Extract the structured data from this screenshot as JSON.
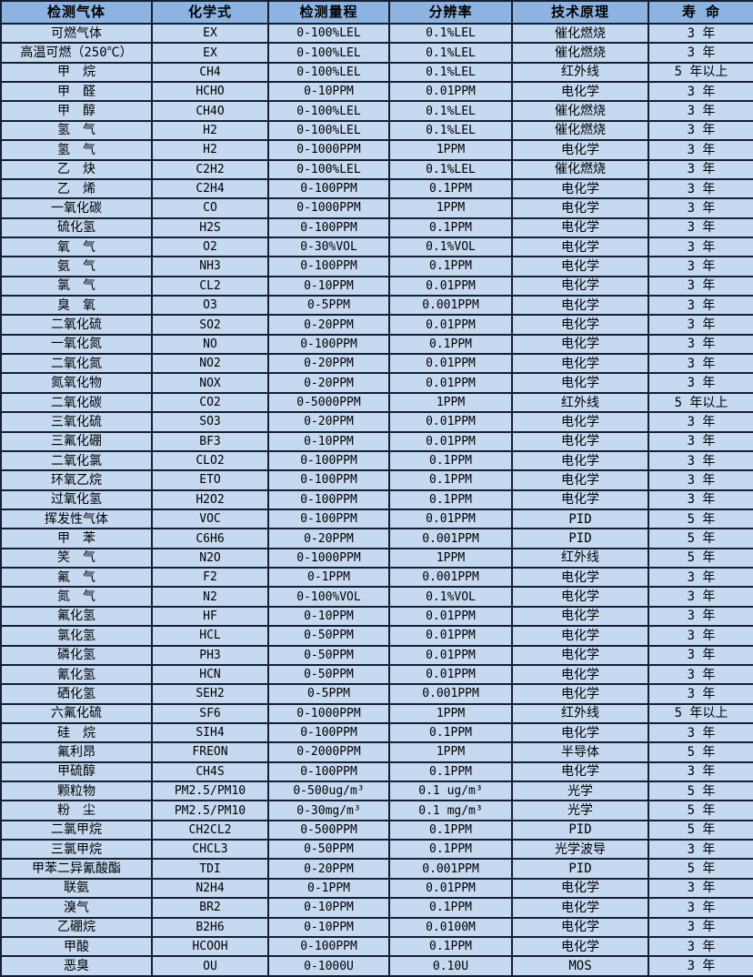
{
  "table": {
    "columns": [
      "检测气体",
      "化学式",
      "检测量程",
      "分辨率",
      "技术原理",
      "寿 命"
    ],
    "rows": [
      [
        "可燃气体",
        "EX",
        "0-100%LEL",
        "0.1%LEL",
        "催化燃烧",
        "3 年"
      ],
      [
        "高温可燃（250℃）",
        "EX",
        "0-100%LEL",
        "0.1%LEL",
        "催化燃烧",
        "3 年"
      ],
      [
        "甲　烷",
        "CH4",
        "0-100%LEL",
        "0.1%LEL",
        "红外线",
        "5 年以上"
      ],
      [
        "甲　醛",
        "HCHO",
        "0-10PPM",
        "0.01PPM",
        "电化学",
        "3 年"
      ],
      [
        "甲　醇",
        "CH4O",
        "0-100%LEL",
        "0.1%LEL",
        "催化燃烧",
        "3 年"
      ],
      [
        "氢　气",
        "H2",
        "0-100%LEL",
        "0.1%LEL",
        "催化燃烧",
        "3 年"
      ],
      [
        "氢　气",
        "H2",
        "0-1000PPM",
        "1PPM",
        "电化学",
        "3 年"
      ],
      [
        "乙　炔",
        "C2H2",
        "0-100%LEL",
        "0.1%LEL",
        "催化燃烧",
        "3 年"
      ],
      [
        "乙　烯",
        "C2H4",
        "0-100PPM",
        "0.1PPM",
        "电化学",
        "3 年"
      ],
      [
        "一氧化碳",
        "CO",
        "0-1000PPM",
        "1PPM",
        "电化学",
        "3 年"
      ],
      [
        "硫化氢",
        "H2S",
        "0-100PPM",
        "0.1PPM",
        "电化学",
        "3 年"
      ],
      [
        "氧　气",
        "O2",
        "0-30%VOL",
        "0.1%VOL",
        "电化学",
        "3 年"
      ],
      [
        "氨　气",
        "NH3",
        "0-100PPM",
        "0.1PPM",
        "电化学",
        "3 年"
      ],
      [
        "氯　气",
        "CL2",
        "0-10PPM",
        "0.01PPM",
        "电化学",
        "3 年"
      ],
      [
        "臭　氧",
        "O3",
        "0-5PPM",
        "0.001PPM",
        "电化学",
        "3 年"
      ],
      [
        "二氧化硫",
        "SO2",
        "0-20PPM",
        "0.01PPM",
        "电化学",
        "3 年"
      ],
      [
        "一氧化氮",
        "NO",
        "0-100PPM",
        "0.1PPM",
        "电化学",
        "3 年"
      ],
      [
        "二氧化氮",
        "NO2",
        "0-20PPM",
        "0.01PPM",
        "电化学",
        "3 年"
      ],
      [
        "氮氧化物",
        "NOX",
        "0-20PPM",
        "0.01PPM",
        "电化学",
        "3 年"
      ],
      [
        "二氧化碳",
        "CO2",
        "0-5000PPM",
        "1PPM",
        "红外线",
        "5 年以上"
      ],
      [
        "三氧化硫",
        "SO3",
        "0-20PPM",
        "0.01PPM",
        "电化学",
        "3 年"
      ],
      [
        "三氟化硼",
        "BF3",
        "0-10PPM",
        "0.01PPM",
        "电化学",
        "3 年"
      ],
      [
        "二氧化氯",
        "CLO2",
        "0-100PPM",
        "0.1PPM",
        "电化学",
        "3 年"
      ],
      [
        "环氧乙烷",
        "ETO",
        "0-100PPM",
        "0.1PPM",
        "电化学",
        "3 年"
      ],
      [
        "过氧化氢",
        "H2O2",
        "0-100PPM",
        "0.1PPM",
        "电化学",
        "3 年"
      ],
      [
        "挥发性气体",
        "VOC",
        "0-100PPM",
        "0.01PPM",
        "PID",
        "5 年"
      ],
      [
        "甲　苯",
        "C6H6",
        "0-20PPM",
        "0.001PPM",
        "PID",
        "5 年"
      ],
      [
        "笑　气",
        "N2O",
        "0-1000PPM",
        "1PPM",
        "红外线",
        "5 年"
      ],
      [
        "氟　气",
        "F2",
        "0-1PPM",
        "0.001PPM",
        "电化学",
        "3 年"
      ],
      [
        "氮　气",
        "N2",
        "0-100%VOL",
        "0.1%VOL",
        "电化学",
        "3 年"
      ],
      [
        "氟化氢",
        "HF",
        "0-10PPM",
        "0.01PPM",
        "电化学",
        "3 年"
      ],
      [
        "氯化氢",
        "HCL",
        "0-50PPM",
        "0.01PPM",
        "电化学",
        "3 年"
      ],
      [
        "磷化氢",
        "PH3",
        "0-50PPM",
        "0.01PPM",
        "电化学",
        "3 年"
      ],
      [
        "氰化氢",
        "HCN",
        "0-50PPM",
        "0.01PPM",
        "电化学",
        "3 年"
      ],
      [
        "硒化氢",
        "SEH2",
        "0-5PPM",
        "0.001PPM",
        "电化学",
        "3 年"
      ],
      [
        "六氟化硫",
        "SF6",
        "0-1000PPM",
        "1PPM",
        "红外线",
        "5 年以上"
      ],
      [
        "硅　烷",
        "SIH4",
        "0-100PPM",
        "0.1PPM",
        "电化学",
        "3 年"
      ],
      [
        "氟利昂",
        "FREON",
        "0-2000PPM",
        "1PPM",
        "半导体",
        "5 年"
      ],
      [
        "甲硫醇",
        "CH4S",
        "0-100PPM",
        "0.1PPM",
        "电化学",
        "3 年"
      ],
      [
        "颗粒物",
        "PM2.5/PM10",
        "0-500ug/m³",
        "0.1 ug/m³",
        "光学",
        "5 年"
      ],
      [
        "粉　尘",
        "PM2.5/PM10",
        "0-30mg/m³",
        "0.1 mg/m³",
        "光学",
        "5 年"
      ],
      [
        "二氯甲烷",
        "CH2CL2",
        "0-500PPM",
        "0.1PPM",
        "PID",
        "5 年"
      ],
      [
        "三氯甲烷",
        "CHCL3",
        "0-50PPM",
        "0.1PPM",
        "光学波导",
        "3 年"
      ],
      [
        "甲苯二异氰酸酯",
        "TDI",
        "0-20PPM",
        "0.001PPM",
        "PID",
        "5 年"
      ],
      [
        "联氨",
        "N2H4",
        "0-1PPM",
        "0.01PPM",
        "电化学",
        "3 年"
      ],
      [
        "溴气",
        "BR2",
        "0-10PPM",
        "0.1PPM",
        "电化学",
        "3 年"
      ],
      [
        "乙硼烷",
        "B2H6",
        "0-10PPM",
        "0.0100M",
        "电化学",
        "3 年"
      ],
      [
        "甲酸",
        "HCOOH",
        "0-100PPM",
        "0.1PPM",
        "电化学",
        "3 年"
      ],
      [
        "恶臭",
        "OU",
        "0-1000U",
        "0.10U",
        "MOS",
        "3 年"
      ]
    ]
  },
  "colors": {
    "header_background": "#8db3e0",
    "row_background": "#c5d9f1",
    "border": "#141f33",
    "text": "#000000"
  }
}
